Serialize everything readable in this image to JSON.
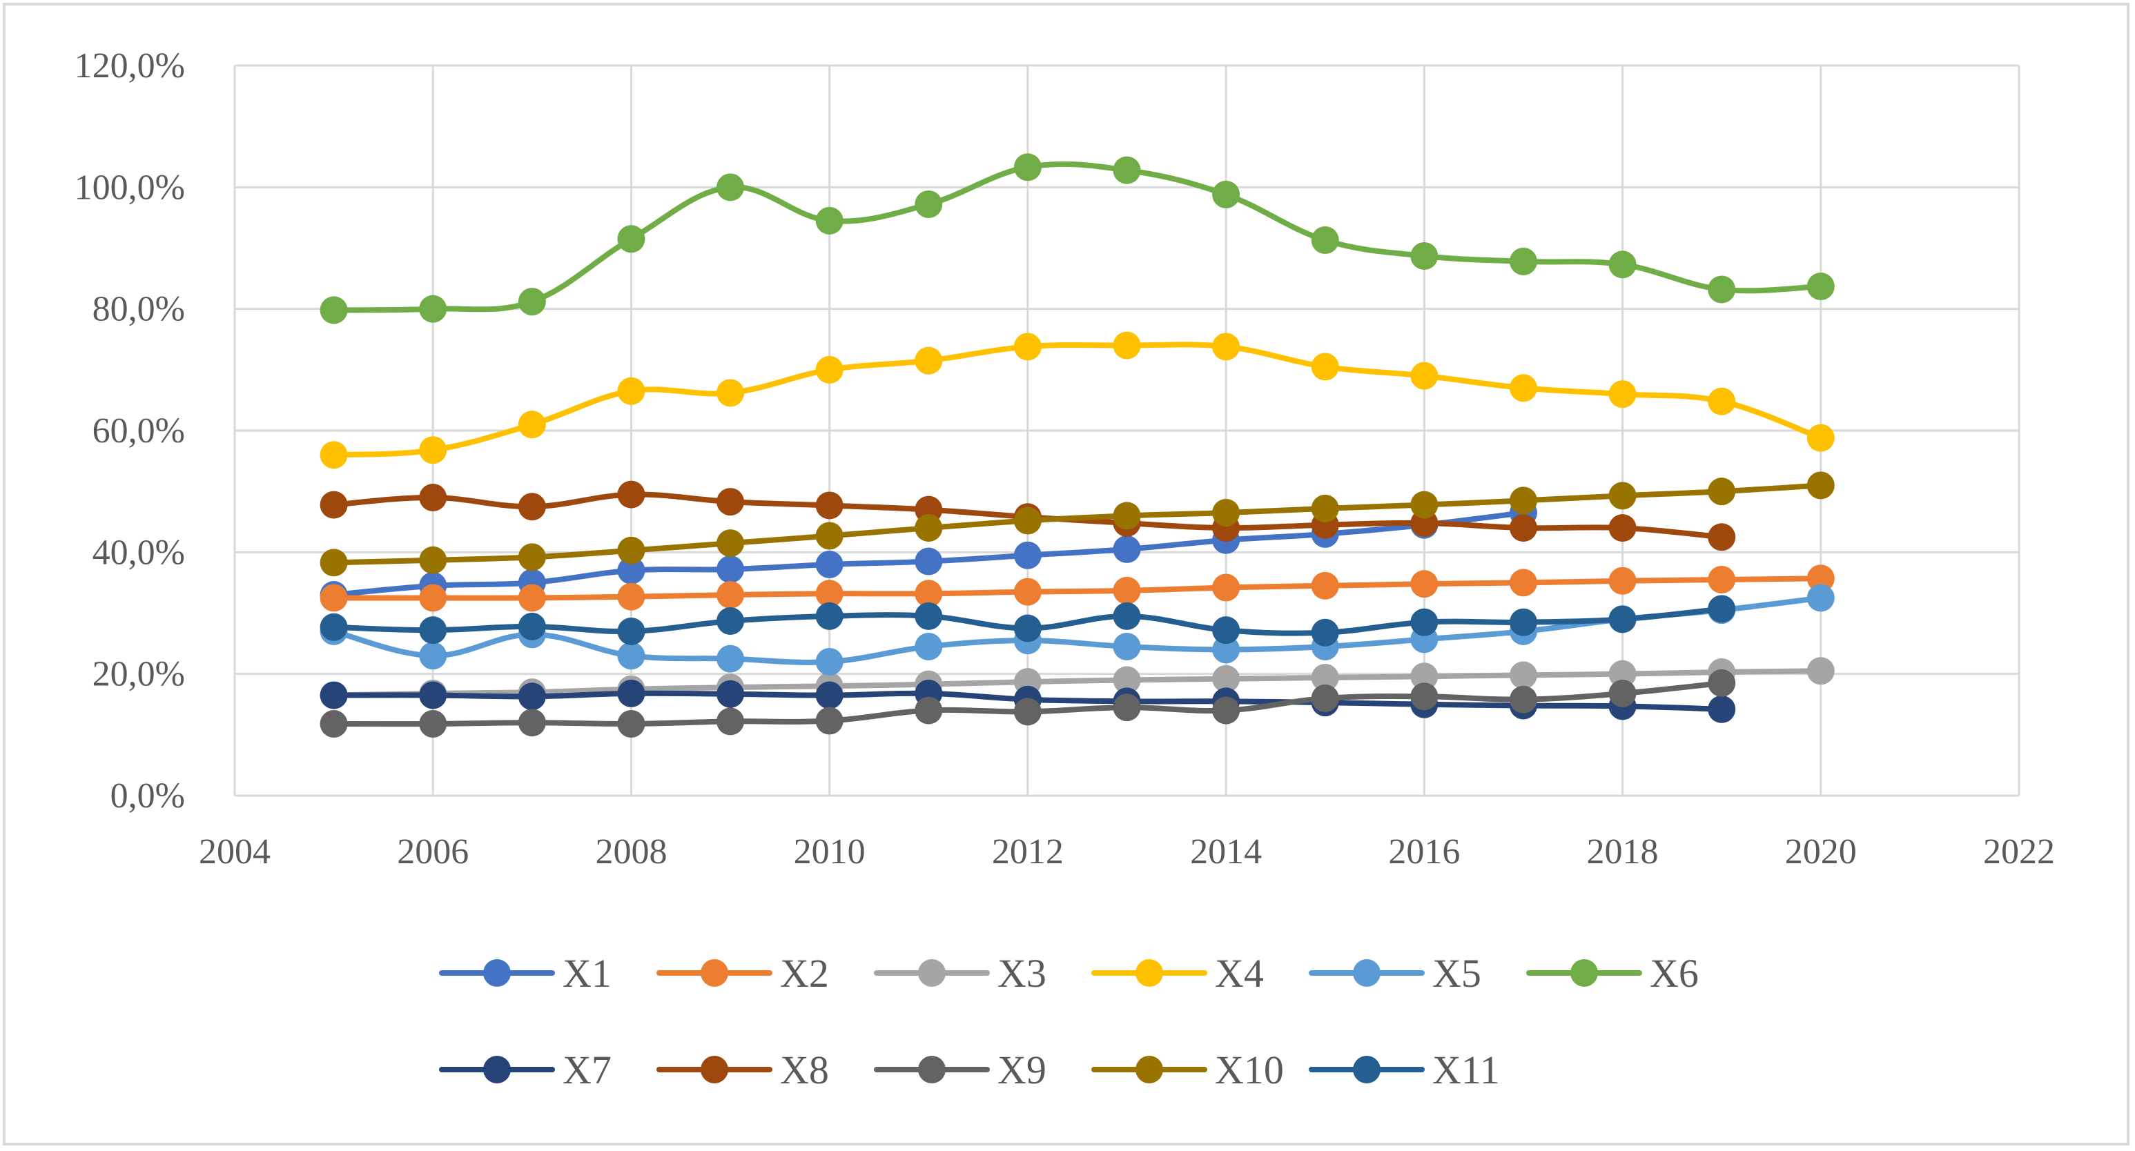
{
  "chart_data": {
    "type": "line",
    "title": "",
    "xlabel": "",
    "ylabel": "",
    "xlim": [
      2004,
      2022
    ],
    "ylim": [
      0,
      120
    ],
    "x_ticks": [
      2004,
      2006,
      2008,
      2010,
      2012,
      2014,
      2016,
      2018,
      2020,
      2022
    ],
    "x_tick_labels": [
      "2004",
      "2006",
      "2008",
      "2010",
      "2012",
      "2014",
      "2016",
      "2018",
      "2020",
      "2022"
    ],
    "y_ticks": [
      0,
      20,
      40,
      60,
      80,
      100,
      120
    ],
    "y_tick_labels": [
      "0,0%",
      "20,0%",
      "40,0%",
      "60,0%",
      "80,0%",
      "100,0%",
      "120,0%"
    ],
    "grid": true,
    "legend_position": "bottom",
    "series": [
      {
        "name": "X1",
        "color": "#4472c4",
        "x": [
          2005,
          2006,
          2007,
          2008,
          2009,
          2010,
          2011,
          2012,
          2013,
          2014,
          2015,
          2016,
          2017
        ],
        "values": [
          33.0,
          34.5,
          35.0,
          37.0,
          37.2,
          38.0,
          38.5,
          39.5,
          40.5,
          42.0,
          43.0,
          44.5,
          46.5
        ]
      },
      {
        "name": "X2",
        "color": "#ed7d31",
        "x": [
          2005,
          2006,
          2007,
          2008,
          2009,
          2010,
          2011,
          2012,
          2013,
          2014,
          2015,
          2016,
          2017,
          2018,
          2019,
          2020
        ],
        "values": [
          32.5,
          32.5,
          32.5,
          32.7,
          33.0,
          33.2,
          33.2,
          33.5,
          33.7,
          34.2,
          34.5,
          34.8,
          35.0,
          35.3,
          35.5,
          35.7
        ]
      },
      {
        "name": "X3",
        "color": "#a5a5a5",
        "x": [
          2005,
          2006,
          2007,
          2008,
          2009,
          2010,
          2011,
          2012,
          2013,
          2014,
          2015,
          2016,
          2017,
          2018,
          2019,
          2020
        ],
        "values": [
          16.5,
          16.8,
          17.0,
          17.5,
          17.8,
          18.0,
          18.3,
          18.7,
          19.0,
          19.2,
          19.4,
          19.6,
          19.8,
          20.0,
          20.3,
          20.5
        ]
      },
      {
        "name": "X4",
        "color": "#ffc000",
        "x": [
          2005,
          2006,
          2007,
          2008,
          2009,
          2010,
          2011,
          2012,
          2013,
          2014,
          2015,
          2016,
          2017,
          2018,
          2019,
          2020
        ],
        "values": [
          56.0,
          56.8,
          61.0,
          66.5,
          66.2,
          70.0,
          71.5,
          73.8,
          74.0,
          73.8,
          70.5,
          69.0,
          67.0,
          66.0,
          64.8,
          58.8
        ]
      },
      {
        "name": "X5",
        "color": "#5b9bd5",
        "x": [
          2005,
          2006,
          2007,
          2008,
          2009,
          2010,
          2011,
          2012,
          2013,
          2014,
          2015,
          2016,
          2017,
          2018,
          2019,
          2020
        ],
        "values": [
          27.0,
          23.0,
          26.5,
          23.0,
          22.5,
          22.0,
          24.5,
          25.5,
          24.5,
          24.0,
          24.5,
          25.7,
          27.0,
          29.0,
          30.5,
          32.5
        ]
      },
      {
        "name": "X6",
        "color": "#70ad47",
        "x": [
          2005,
          2006,
          2007,
          2008,
          2009,
          2010,
          2011,
          2012,
          2013,
          2014,
          2015,
          2016,
          2017,
          2018,
          2019,
          2020
        ],
        "values": [
          79.8,
          80.0,
          81.2,
          91.5,
          100.0,
          94.5,
          97.2,
          103.3,
          102.8,
          98.8,
          91.3,
          88.7,
          87.8,
          87.3,
          83.2,
          83.7
        ]
      },
      {
        "name": "X7",
        "color": "#264478",
        "x": [
          2005,
          2006,
          2007,
          2008,
          2009,
          2010,
          2011,
          2012,
          2013,
          2014,
          2015,
          2016,
          2017,
          2018,
          2019
        ],
        "values": [
          16.5,
          16.5,
          16.3,
          16.8,
          16.7,
          16.5,
          16.8,
          15.8,
          15.5,
          15.5,
          15.3,
          15.0,
          14.8,
          14.7,
          14.2
        ]
      },
      {
        "name": "X8",
        "color": "#9e480e",
        "x": [
          2005,
          2006,
          2007,
          2008,
          2009,
          2010,
          2011,
          2012,
          2013,
          2014,
          2015,
          2016,
          2017,
          2018,
          2019
        ],
        "values": [
          47.8,
          49.0,
          47.5,
          49.5,
          48.3,
          47.7,
          47.0,
          45.8,
          44.8,
          44.0,
          44.5,
          44.8,
          44.0,
          44.0,
          42.5
        ]
      },
      {
        "name": "X9",
        "color": "#636363",
        "x": [
          2005,
          2006,
          2007,
          2008,
          2009,
          2010,
          2011,
          2012,
          2013,
          2014,
          2015,
          2016,
          2017,
          2018,
          2019
        ],
        "values": [
          11.8,
          11.8,
          12.0,
          11.8,
          12.2,
          12.3,
          14.0,
          13.8,
          14.5,
          14.0,
          16.0,
          16.3,
          15.8,
          16.8,
          18.5
        ]
      },
      {
        "name": "X10",
        "color": "#997300",
        "x": [
          2005,
          2006,
          2007,
          2008,
          2009,
          2010,
          2011,
          2012,
          2013,
          2014,
          2015,
          2016,
          2017,
          2018,
          2019,
          2020
        ],
        "values": [
          38.3,
          38.7,
          39.2,
          40.3,
          41.5,
          42.7,
          44.0,
          45.2,
          46.0,
          46.5,
          47.2,
          47.8,
          48.5,
          49.3,
          50.0,
          51.0
        ]
      },
      {
        "name": "X11",
        "color": "#255e91",
        "x": [
          2005,
          2006,
          2007,
          2008,
          2009,
          2010,
          2011,
          2012,
          2013,
          2014,
          2015,
          2016,
          2017,
          2018,
          2019
        ],
        "values": [
          27.7,
          27.2,
          27.8,
          27.0,
          28.7,
          29.5,
          29.5,
          27.5,
          29.5,
          27.2,
          26.8,
          28.5,
          28.5,
          29.0,
          30.7
        ]
      }
    ]
  }
}
